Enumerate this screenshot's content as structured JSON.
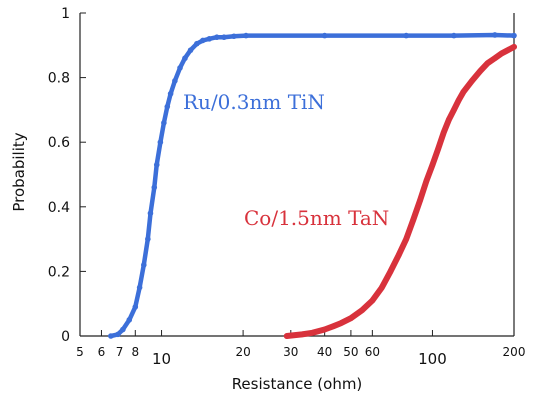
{
  "chart_data": {
    "type": "line",
    "xlabel": "Resistance (ohm)",
    "ylabel": "Probability",
    "x_scale": "log",
    "xlim": [
      5,
      200
    ],
    "ylim": [
      0,
      1
    ],
    "x_ticks": [
      {
        "value": 5,
        "label": "5",
        "major": false
      },
      {
        "value": 6,
        "label": "6",
        "major": false
      },
      {
        "value": 7,
        "label": "7",
        "major": false
      },
      {
        "value": 8,
        "label": "8",
        "major": false
      },
      {
        "value": 10,
        "label": "10",
        "major": true
      },
      {
        "value": 20,
        "label": "20",
        "major": false
      },
      {
        "value": 30,
        "label": "30",
        "major": false
      },
      {
        "value": 40,
        "label": "40",
        "major": false
      },
      {
        "value": 50,
        "label": "50",
        "major": false
      },
      {
        "value": 60,
        "label": "60",
        "major": false
      },
      {
        "value": 100,
        "label": "100",
        "major": true
      },
      {
        "value": 200,
        "label": "200",
        "major": false
      }
    ],
    "y_ticks": [
      {
        "value": 0,
        "label": "0"
      },
      {
        "value": 0.2,
        "label": "0.2"
      },
      {
        "value": 0.4,
        "label": "0.4"
      },
      {
        "value": 0.6,
        "label": "0.6"
      },
      {
        "value": 0.8,
        "label": "0.8"
      },
      {
        "value": 1,
        "label": "1"
      }
    ],
    "grid": false,
    "series": [
      {
        "name": "Ru/0.3nm TiN",
        "color": "#3c6fd9",
        "x": [
          6.5,
          6.9,
          7.2,
          7.6,
          8.0,
          8.3,
          8.6,
          8.9,
          9.1,
          9.4,
          9.6,
          9.9,
          10.2,
          10.5,
          10.8,
          11.2,
          11.7,
          12.2,
          12.8,
          13.5,
          14.2,
          15.0,
          16.0,
          17.0,
          18.5,
          20.5,
          40.0,
          80.0,
          120.0,
          170.0,
          200.0
        ],
        "y": [
          0.0,
          0.005,
          0.02,
          0.05,
          0.09,
          0.15,
          0.22,
          0.3,
          0.38,
          0.46,
          0.53,
          0.6,
          0.66,
          0.71,
          0.75,
          0.79,
          0.83,
          0.86,
          0.885,
          0.905,
          0.915,
          0.92,
          0.925,
          0.925,
          0.928,
          0.93,
          0.93,
          0.93,
          0.93,
          0.932,
          0.93
        ]
      },
      {
        "name": "Co/1.5nm TaN",
        "color": "#d8323c",
        "x": [
          29,
          33,
          36,
          40,
          43,
          46,
          50,
          55,
          60,
          65,
          70,
          75,
          80,
          85,
          90,
          95,
          100,
          105,
          110,
          115,
          120,
          125,
          130,
          140,
          150,
          160,
          170,
          180,
          190,
          200
        ],
        "y": [
          0.0,
          0.005,
          0.01,
          0.02,
          0.03,
          0.04,
          0.055,
          0.08,
          0.11,
          0.15,
          0.2,
          0.25,
          0.3,
          0.36,
          0.42,
          0.48,
          0.53,
          0.58,
          0.63,
          0.67,
          0.7,
          0.73,
          0.755,
          0.79,
          0.82,
          0.845,
          0.86,
          0.875,
          0.885,
          0.895
        ]
      }
    ]
  }
}
